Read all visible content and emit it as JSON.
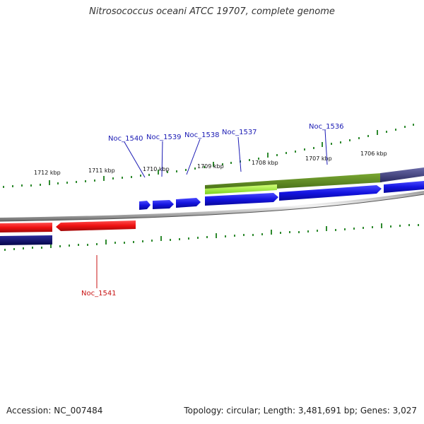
{
  "title": "Nitrosococcus oceani ATCC 19707, complete genome",
  "accession": "Accession: NC_007484",
  "summary": "Topology: circular; Length: 3,481,691 bp; Genes: 3,027",
  "colors": {
    "forward_gene": "#1a1ae6",
    "reverse_gene": "#e61414",
    "feature_olive": "#5f8a1f",
    "feature_lime": "#a6f03a",
    "feature_navy": "#0e0e6a",
    "feature_slate": "#3b3b7a",
    "tick": "#2f8a2f",
    "label_forward": "#1a1ab4",
    "label_reverse": "#c81414"
  },
  "ruler_labels": [
    "1712 kbp",
    "1711 kbp",
    "1710 kbp",
    "1709 kbp",
    "1708 kbp",
    "1707 kbp",
    "1706 kbp"
  ],
  "gene_labels": {
    "noc1540": "Noc_1540",
    "noc1539": "Noc_1539",
    "noc1538": "Noc_1538",
    "noc1537": "Noc_1537",
    "noc1536": "Noc_1536",
    "noc1541": "Noc_1541"
  }
}
